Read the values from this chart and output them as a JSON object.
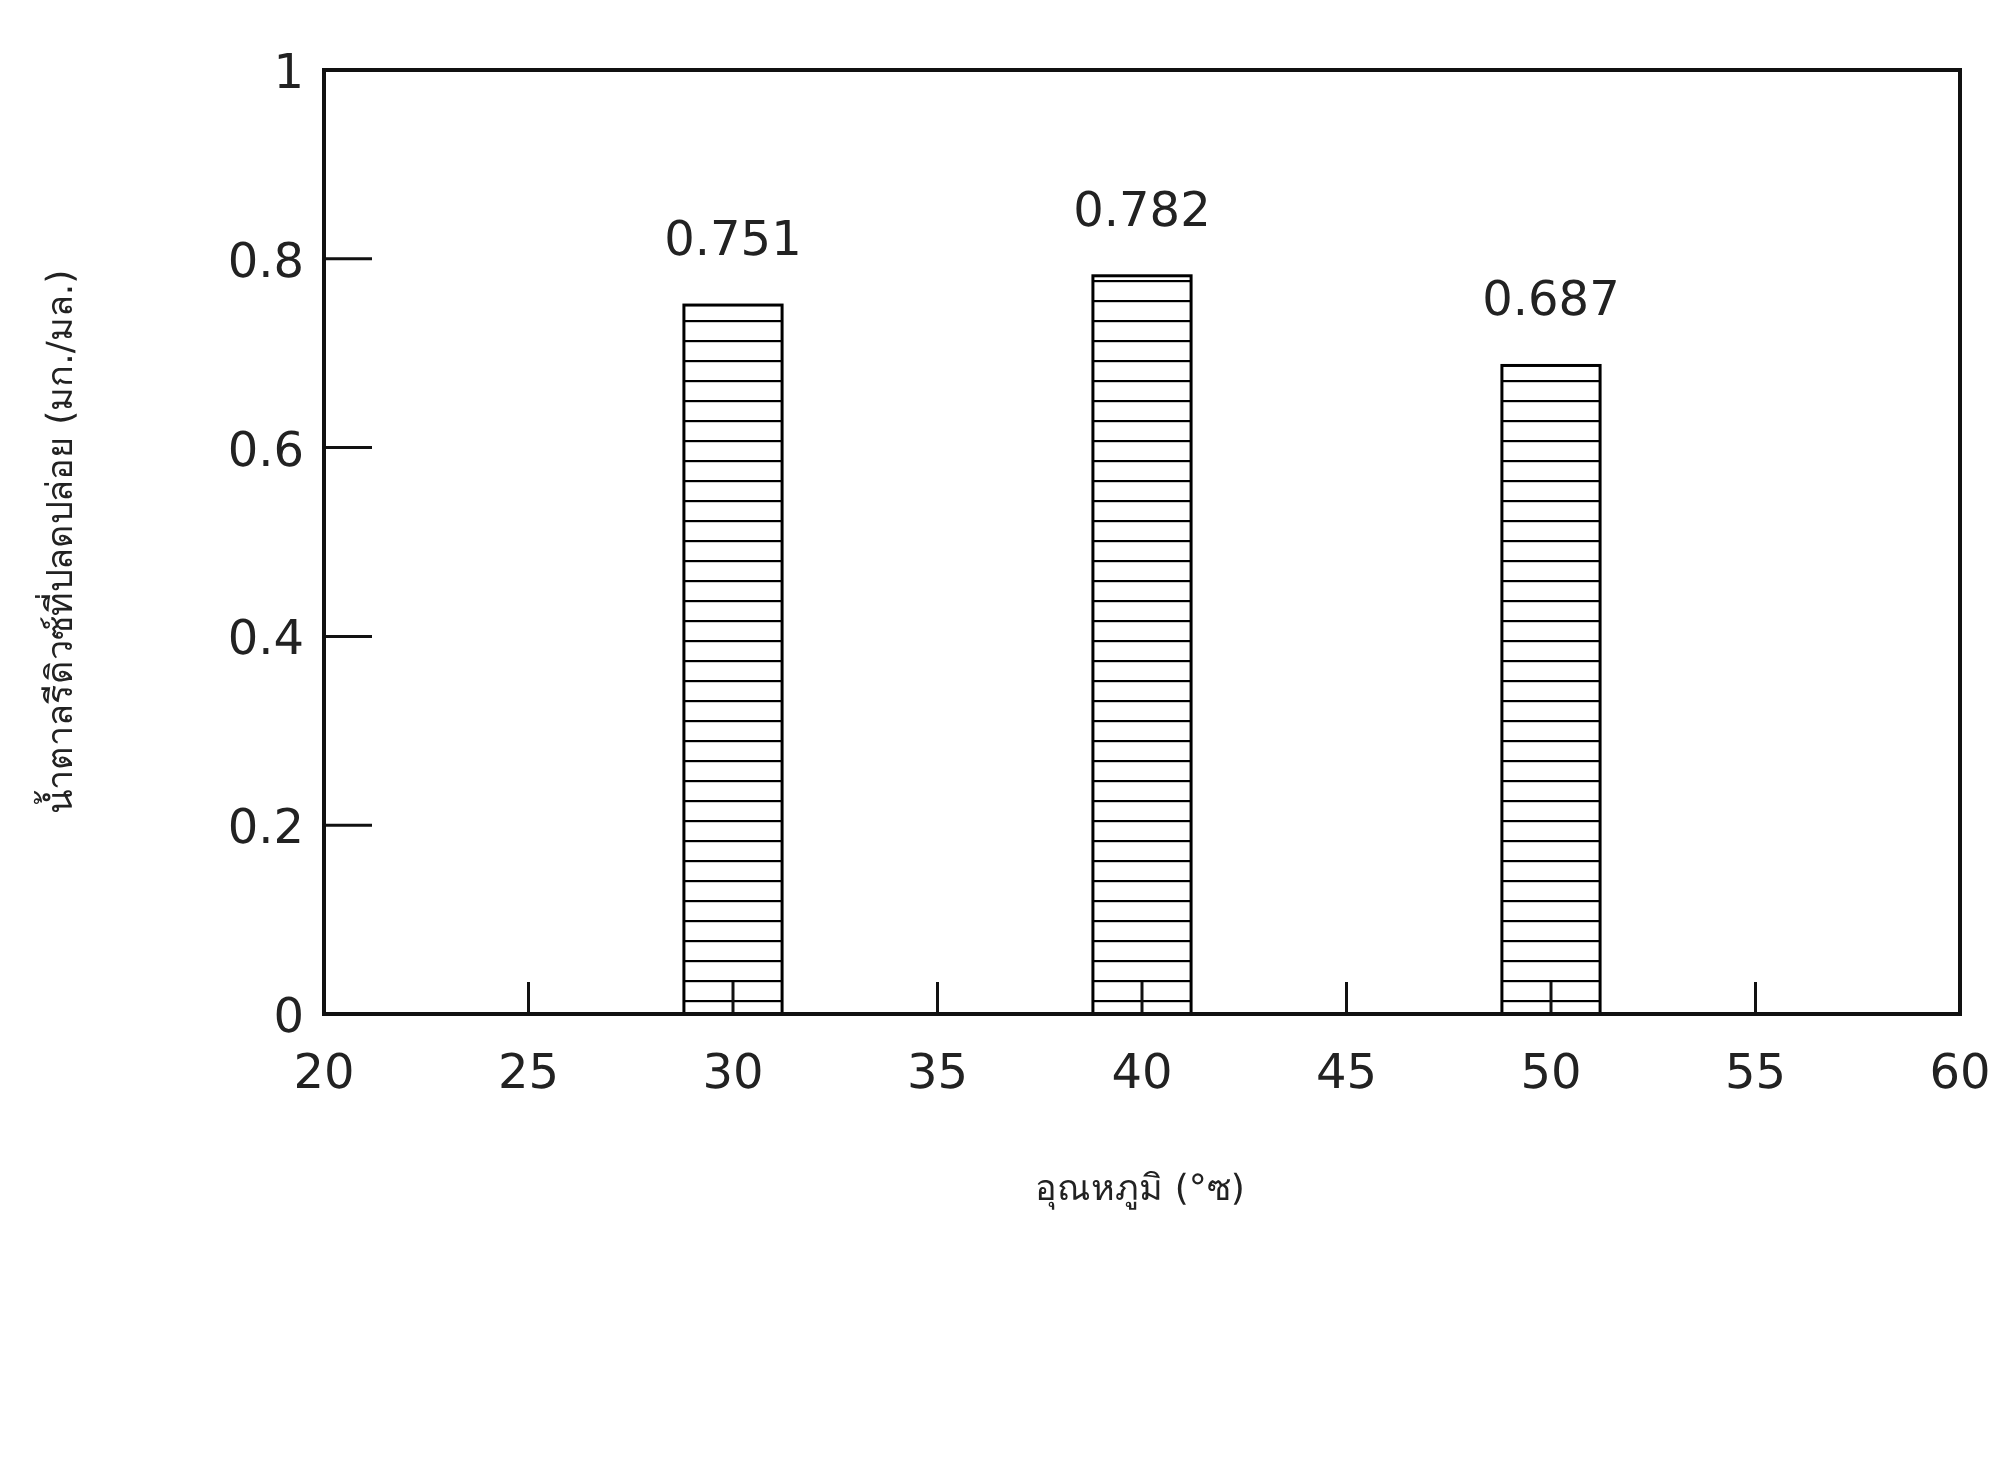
{
  "chart_data": {
    "type": "bar",
    "xlabel": "อุณหภูมิ (°ซ)",
    "ylabel": "น้ำตาลรีดิวซ์ที่ปลดปล่อย (มก./มล.)",
    "x": [
      30,
      40,
      50
    ],
    "series": [
      {
        "color": "#000000",
        "values": [
          0.751,
          0.782,
          0.687
        ]
      }
    ],
    "data_labels": true,
    "xlim": [
      20,
      60
    ],
    "xticks": [
      20,
      25,
      30,
      35,
      40,
      45,
      50,
      55,
      60
    ],
    "ylim": [
      0,
      1
    ],
    "yticks": [
      0,
      0.2,
      0.4,
      0.6,
      0.8,
      1
    ]
  }
}
